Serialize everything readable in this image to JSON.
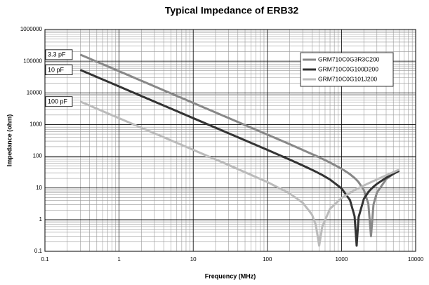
{
  "chart_data": {
    "type": "line",
    "title": "Typical Impedance of ERB32",
    "x_label": "Frequency (MHz)",
    "y_label": "Impedance (ohm)",
    "x": [
      0.3,
      1,
      3,
      10,
      30,
      100,
      200,
      300,
      400,
      450,
      500,
      550,
      700,
      1000,
      1300,
      1500,
      1600,
      1700,
      2000,
      2300,
      2500,
      2700,
      3000,
      4000,
      6000
    ],
    "series": [
      {
        "name": "GRM710C0G3R3C200",
        "color": "#888888",
        "values": [
          160760,
          48228,
          16076,
          4823,
          1608,
          481,
          240,
          158,
          117,
          104,
          93,
          83,
          63,
          40.5,
          27.1,
          20.6,
          17.8,
          15.2,
          8.6,
          3.2,
          0.3,
          3.0,
          7.1,
          18.9,
          38.3
        ]
      },
      {
        "name": "GRM710C0G100D200",
        "color": "#333333",
        "values": [
          53050,
          15915,
          5305,
          1592,
          530,
          158.5,
          78.3,
          51.2,
          37.3,
          32.6,
          28.7,
          25.5,
          18.4,
          9.7,
          4.15,
          1.28,
          0.15,
          1.2,
          4.5,
          7.4,
          9.2,
          10.9,
          13.4,
          20.9,
          34.7
        ]
      },
      {
        "name": "GRM710C0G101J200",
        "color": "#bbbbbb",
        "values": [
          5305,
          1591.5,
          530.5,
          159.1,
          52.9,
          15.3,
          6.7,
          3.4,
          1.44,
          0.68,
          0.15,
          0.6,
          2.2,
          4.8,
          7.0,
          8.5,
          9.2,
          9.9,
          11.9,
          13.9,
          15.2,
          16.5,
          18.5,
          25.0,
          37.8
        ]
      }
    ],
    "annotations": [
      "3.3 pF",
      "10 pF",
      "100 pF"
    ],
    "xlim": [
      0.1,
      10000
    ],
    "xticks": [
      0.1,
      1,
      10,
      100,
      1000,
      10000
    ],
    "ylim": [
      0.1,
      1000000
    ],
    "yticks": [
      0.1,
      1,
      10,
      100,
      1000,
      10000,
      100000,
      1000000
    ],
    "log_x": true,
    "log_y": true,
    "grid": true,
    "minor_grid": true,
    "legend": "upper right"
  }
}
